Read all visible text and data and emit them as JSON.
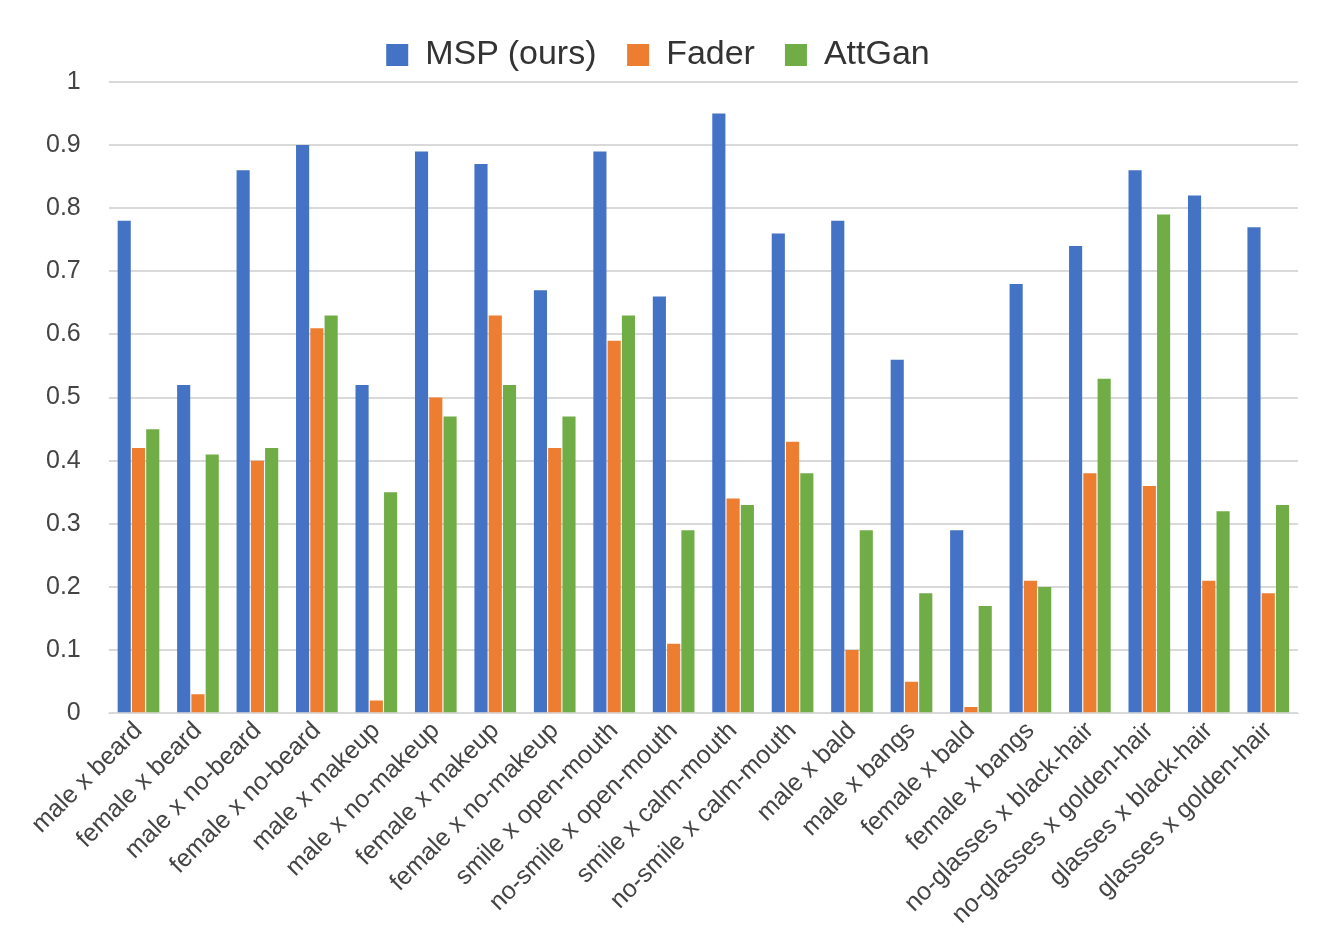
{
  "chart_data": {
    "type": "bar",
    "categories": [
      "male x beard",
      "female x beard",
      "male x no-beard",
      "female x no-beard",
      "male x makeup",
      "male x no-makeup",
      "female x makeup",
      "female x no-makeup",
      "smile x open-mouth",
      "no-smile x open-mouth",
      "smile x calm-mouth",
      "no-smile x calm-mouth",
      "male x bald",
      "male x bangs",
      "female x bald",
      "female x bangs",
      "no-glasses x black-hair",
      "no-glasses x golden-hair",
      "glasses x black-hair",
      "glasses x golden-hair"
    ],
    "series": [
      {
        "name": "MSP (ours)",
        "color": "#4472c4",
        "values": [
          0.78,
          0.52,
          0.86,
          0.9,
          0.52,
          0.89,
          0.87,
          0.67,
          0.89,
          0.66,
          0.95,
          0.76,
          0.78,
          0.56,
          0.29,
          0.68,
          0.74,
          0.86,
          0.82,
          0.77
        ]
      },
      {
        "name": "Fader",
        "color": "#ed7d31",
        "values": [
          0.42,
          0.03,
          0.4,
          0.61,
          0.02,
          0.5,
          0.63,
          0.42,
          0.59,
          0.11,
          0.34,
          0.43,
          0.1,
          0.05,
          0.01,
          0.21,
          0.38,
          0.36,
          0.21,
          0.19
        ]
      },
      {
        "name": "AttGan",
        "color": "#70ad47",
        "values": [
          0.45,
          0.41,
          0.42,
          0.63,
          0.35,
          0.47,
          0.52,
          0.47,
          0.63,
          0.29,
          0.33,
          0.38,
          0.29,
          0.19,
          0.17,
          0.2,
          0.53,
          0.79,
          0.32,
          0.33
        ]
      }
    ],
    "ylim": [
      0,
      1
    ],
    "yticks": [
      0,
      0.1,
      0.2,
      0.3,
      0.4,
      0.5,
      0.6,
      0.7,
      0.8,
      0.9,
      1
    ],
    "grid": "y",
    "legend": "top"
  }
}
